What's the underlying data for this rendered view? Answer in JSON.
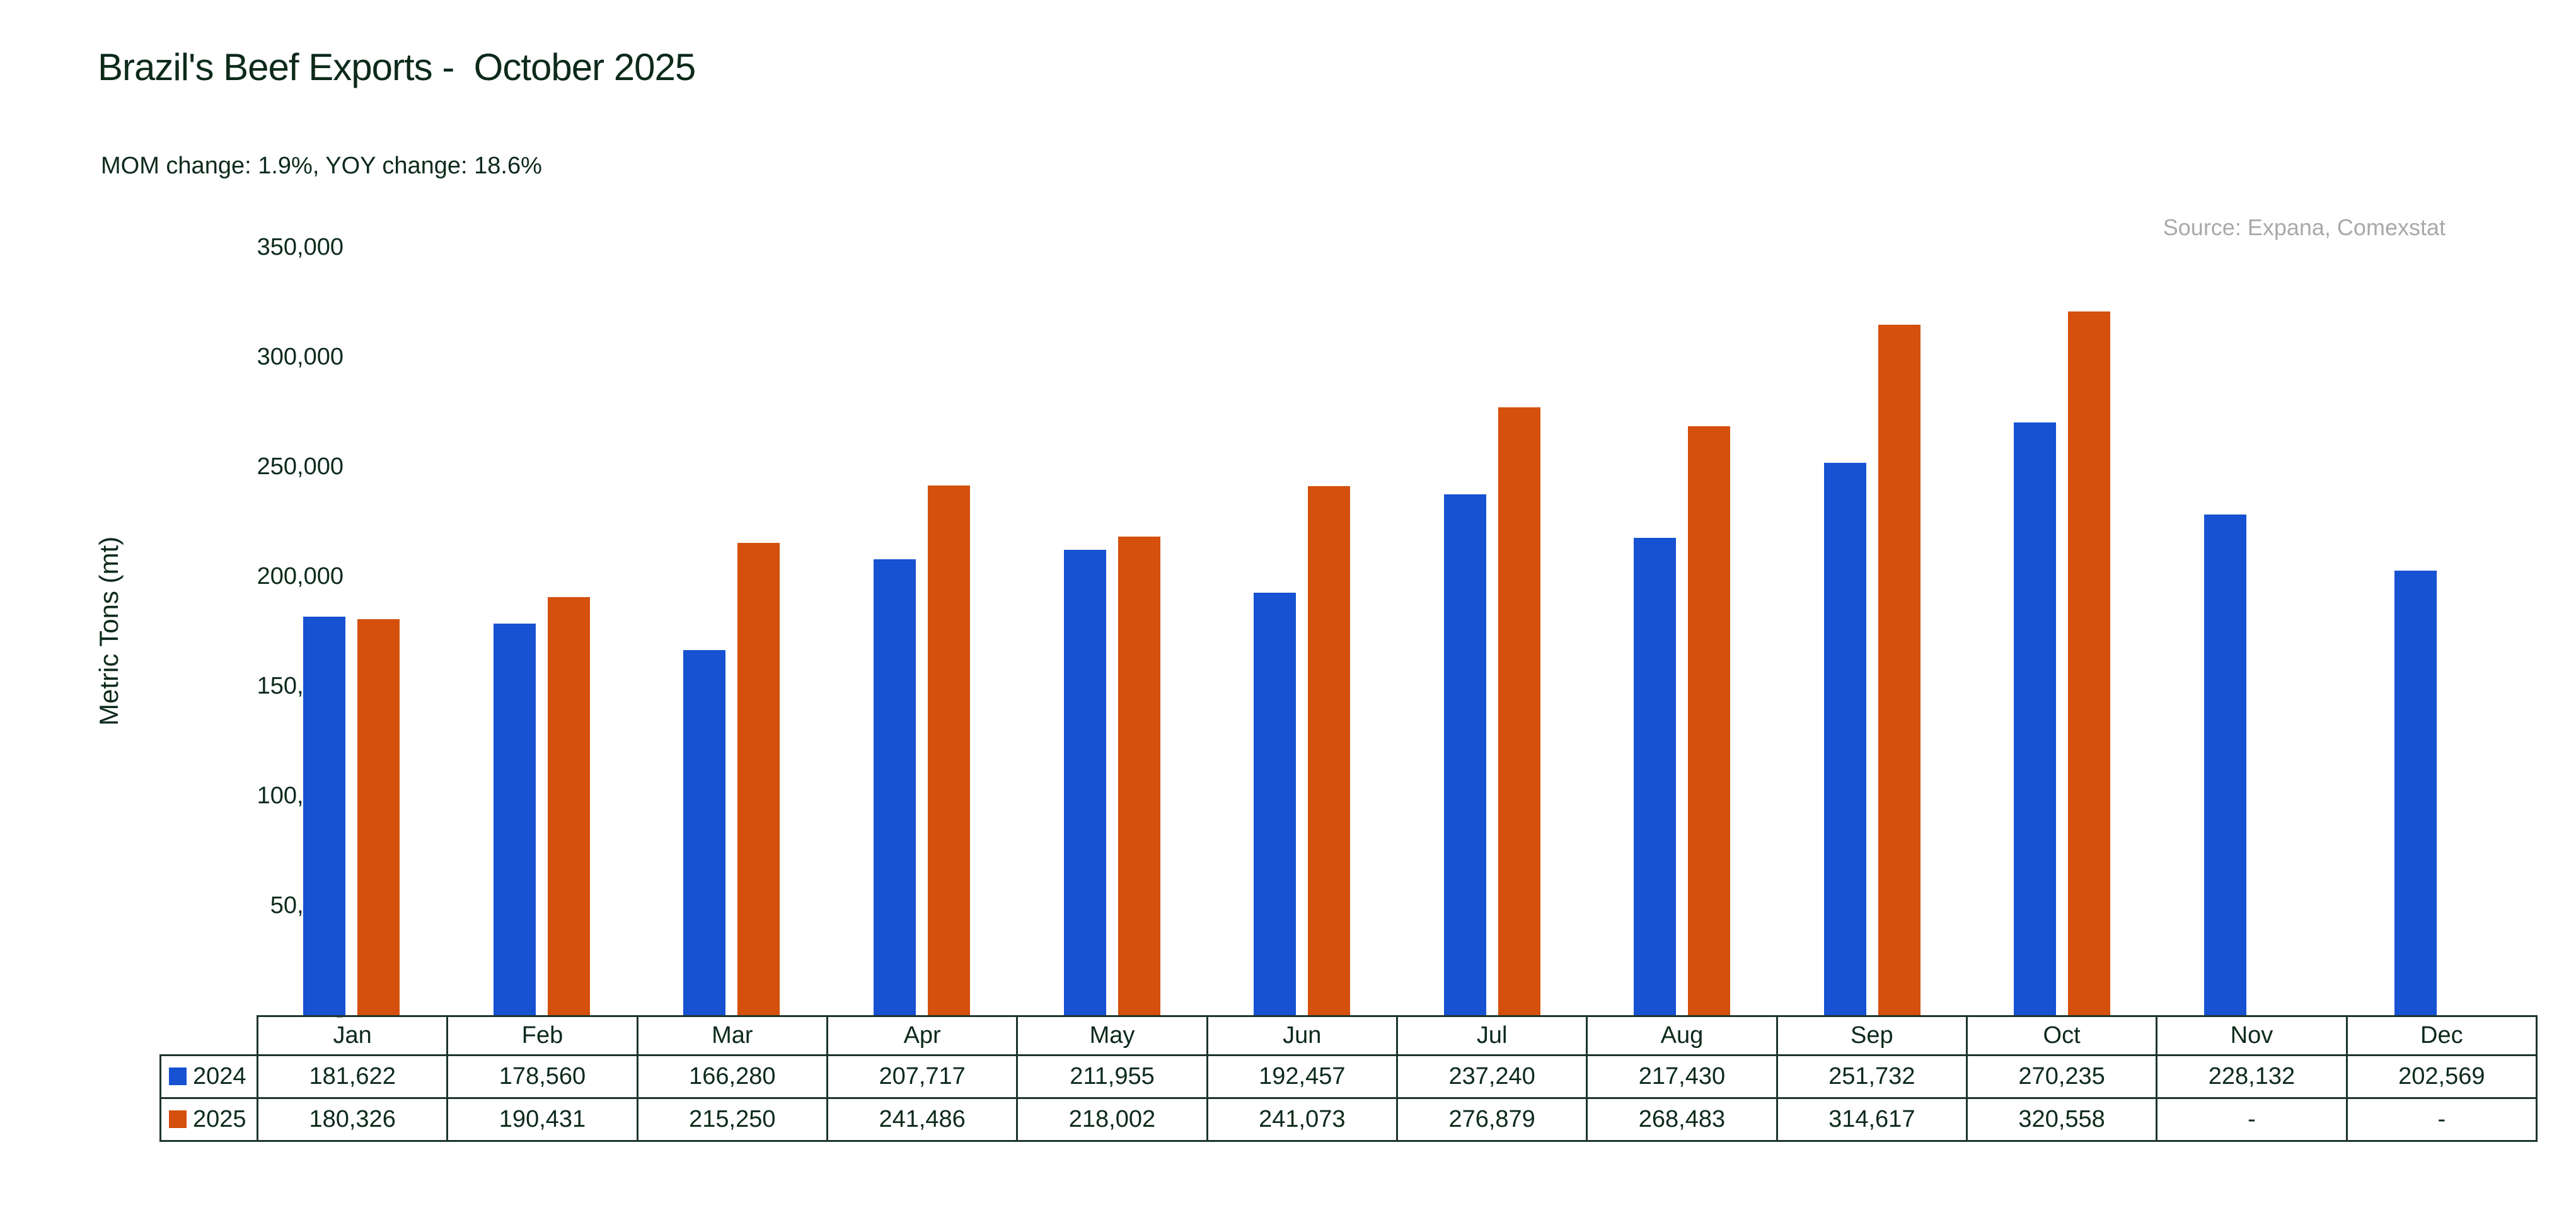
{
  "header": {
    "title": "Brazil's Beef Exports -  October 2025",
    "subtitle": "MOM change: 1.9%, YOY change: 18.6%",
    "source": "Source: Expana, Comexstat"
  },
  "chart_data": {
    "type": "bar",
    "title": "Brazil's Beef Exports - October 2025",
    "subtitle": "MOM change: 1.9%, YOY change: 18.6%",
    "xlabel": "",
    "ylabel": "Metric Tons (mt)",
    "ylim": [
      0,
      350000
    ],
    "ytick_step": 50000,
    "ytick_labels_bottom_to_top": [
      "-",
      "50,000",
      "100,000",
      "150,000",
      "200,000",
      "250,000",
      "300,000",
      "350,000"
    ],
    "grid": false,
    "legend_position": "table-row-headers",
    "categories": [
      "Jan",
      "Feb",
      "Mar",
      "Apr",
      "May",
      "Jun",
      "Jul",
      "Aug",
      "Sep",
      "Oct",
      "Nov",
      "Dec"
    ],
    "series": [
      {
        "name": "2024",
        "color": "#1652D2",
        "values": [
          181622,
          178560,
          166280,
          207717,
          211955,
          192457,
          237240,
          217430,
          251732,
          270235,
          228132,
          202569
        ]
      },
      {
        "name": "2025",
        "color": "#D4500C",
        "values": [
          180326,
          190431,
          215250,
          241486,
          218002,
          241073,
          276879,
          268483,
          314617,
          320558,
          null,
          null
        ]
      }
    ]
  },
  "table": {
    "missing_label": "-",
    "columns": [
      "Jan",
      "Feb",
      "Mar",
      "Apr",
      "May",
      "Jun",
      "Jul",
      "Aug",
      "Sep",
      "Oct",
      "Nov",
      "Dec"
    ],
    "rows": [
      {
        "label": "2024",
        "swatch_color": "#1652D2",
        "values": [
          "181,622",
          "178,560",
          "166,280",
          "207,717",
          "211,955",
          "192,457",
          "237,240",
          "217,430",
          "251,732",
          "270,235",
          "228,132",
          "202,569"
        ]
      },
      {
        "label": "2025",
        "swatch_color": "#D4500C",
        "values": [
          "180,326",
          "190,431",
          "215,250",
          "241,486",
          "218,002",
          "241,073",
          "276,879",
          "268,483",
          "314,617",
          "320,558",
          "-",
          "-"
        ]
      }
    ]
  },
  "colors": {
    "text_dark": "#0D2A1B",
    "table_border": "#1D352B",
    "source_gray": "#A9A9A9",
    "series_2024": "#1652D2",
    "series_2025": "#D4500C",
    "background": "#FFFFFF"
  }
}
